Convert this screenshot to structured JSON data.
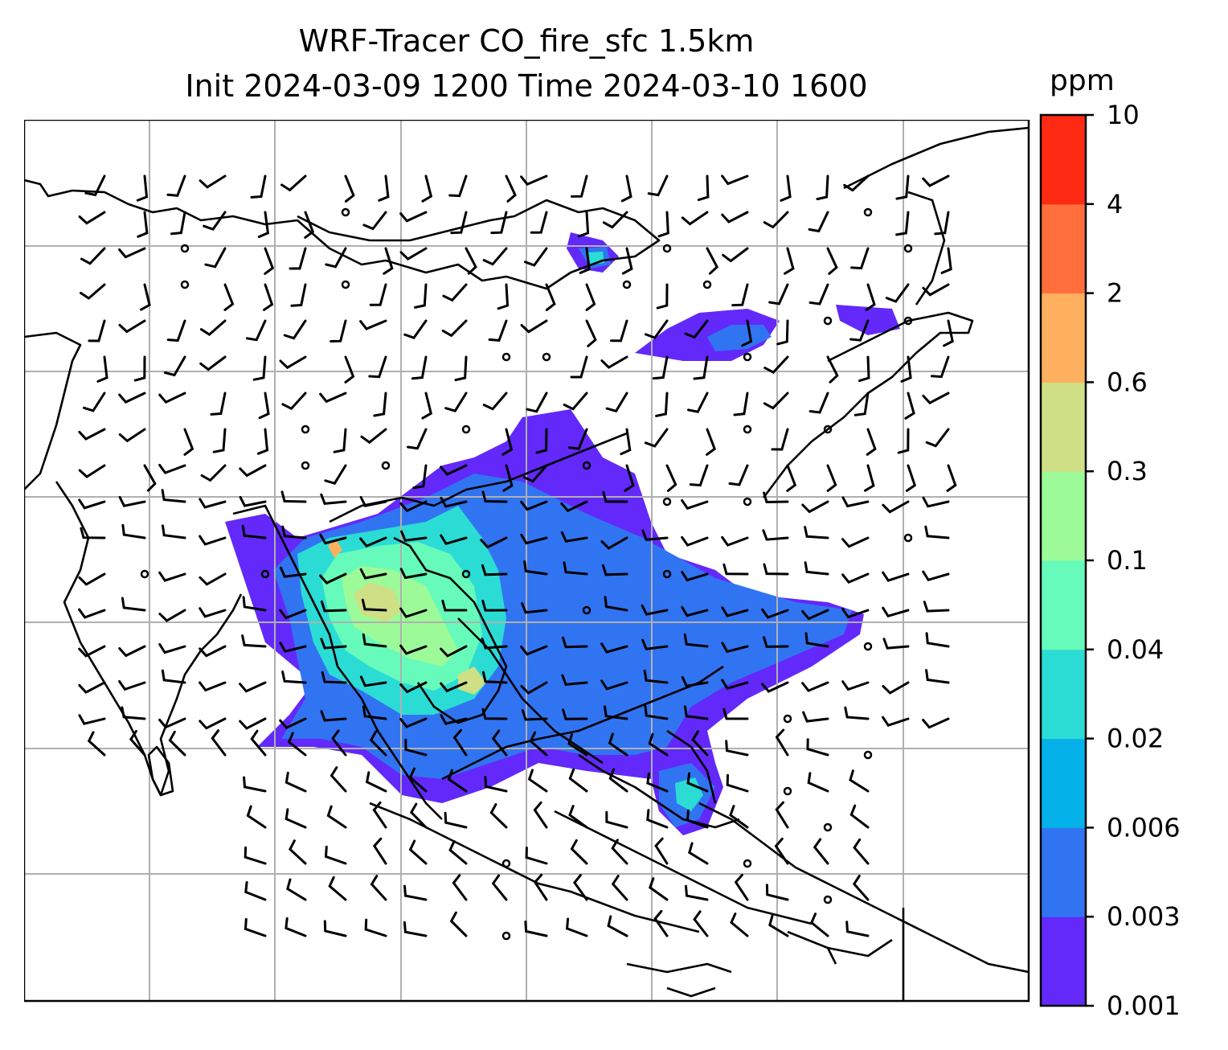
{
  "title": {
    "line1": "WRF-Tracer CO_fire_sfc 1.5km",
    "line2": "Init 2024-03-09 1200 Time 2024-03-10 1600"
  },
  "colorbar": {
    "unit": "ppm",
    "levels": [
      "0.001",
      "0.003",
      "0.006",
      "0.02",
      "0.04",
      "0.1",
      "0.3",
      "0.6",
      "2",
      "4",
      "10"
    ],
    "colors": [
      "#6229fa",
      "#3174f2",
      "#04b2e9",
      "#2bdcd5",
      "#66fbba",
      "#9dfa98",
      "#cfdf85",
      "#ffb05e",
      "#ff6e3b",
      "#ff2a14"
    ]
  },
  "map": {
    "type": "filled-contour-with-wind-barbs",
    "grid": true,
    "coastline_color": "#000000",
    "gridline_color": "#b0b0b0"
  }
}
